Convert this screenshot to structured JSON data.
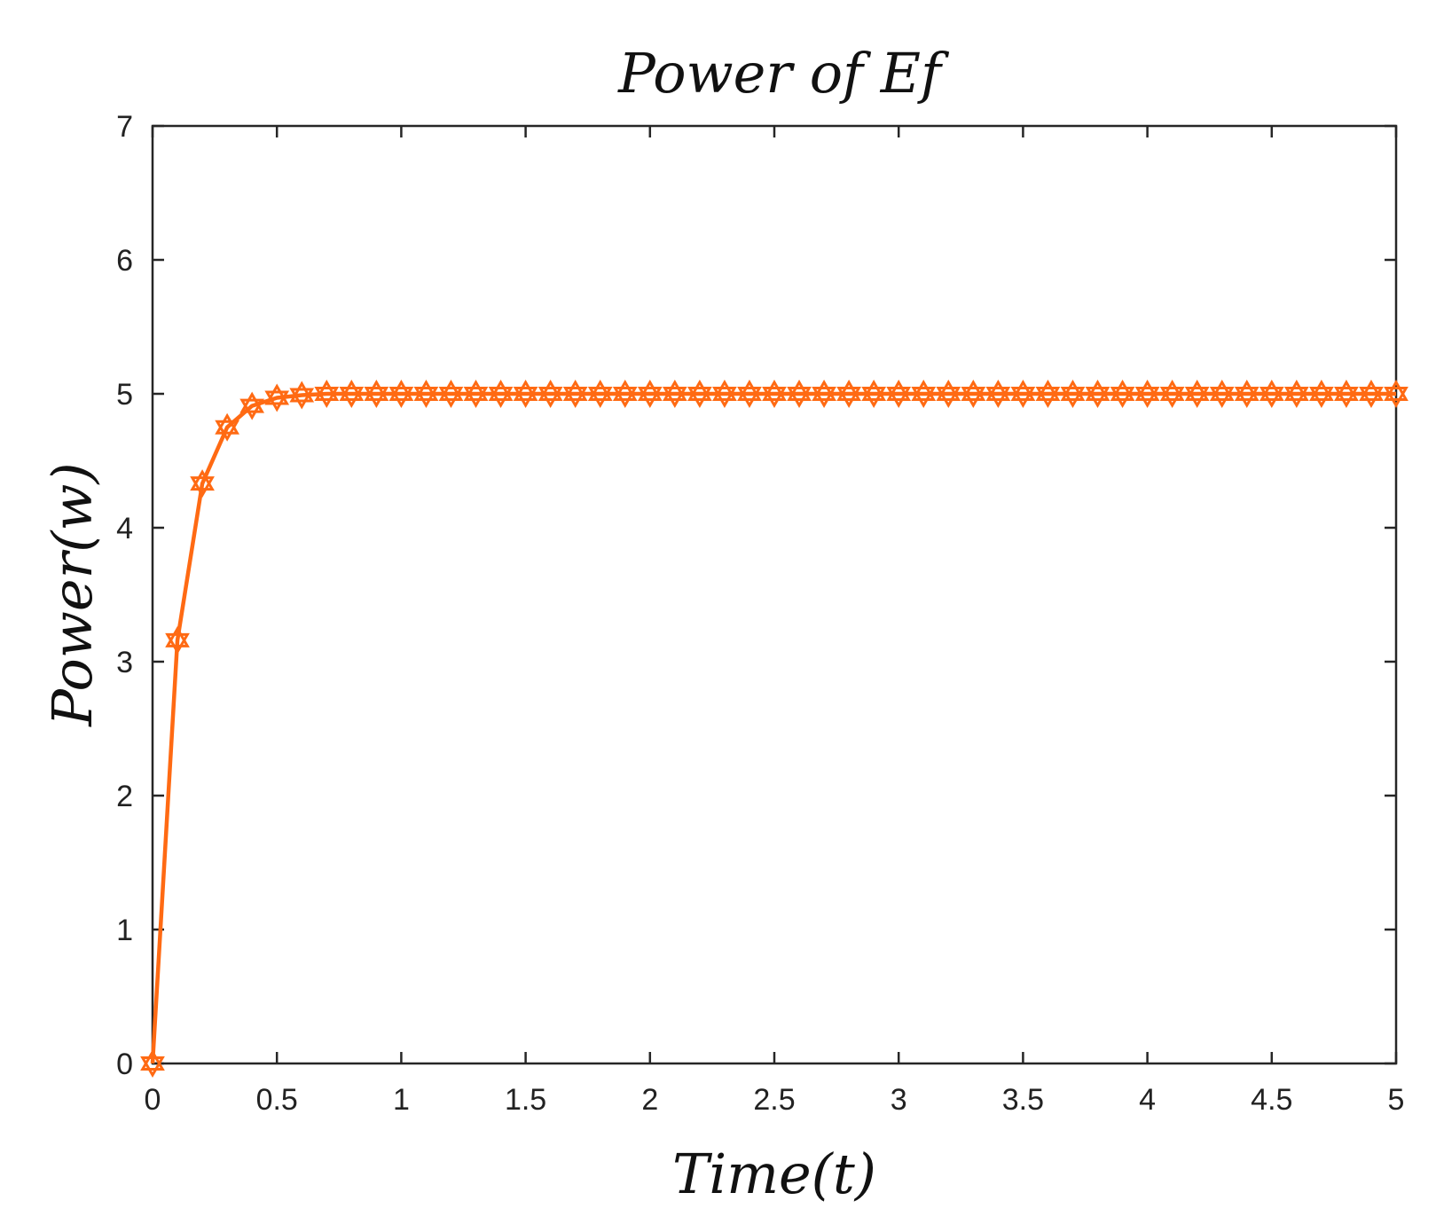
{
  "chart_data": {
    "type": "line",
    "title": "Power of Ef",
    "xlabel": "Time(t)",
    "ylabel": "Power(w)",
    "xlim": [
      0,
      5
    ],
    "ylim": [
      0,
      7
    ],
    "xticks": [
      "0",
      "0.5",
      "1",
      "1.5",
      "2",
      "2.5",
      "3",
      "3.5",
      "4",
      "4.5",
      "5"
    ],
    "yticks": [
      "0",
      "1",
      "2",
      "3",
      "4",
      "5",
      "6",
      "7"
    ],
    "grid": false,
    "series": [
      {
        "marker": "hexagram",
        "color": "#ff6a13",
        "x": [
          0,
          0.1,
          0.2,
          0.3,
          0.4,
          0.5,
          0.6,
          0.7,
          0.8,
          0.9,
          1.0,
          1.1,
          1.2,
          1.3,
          1.4,
          1.5,
          1.6,
          1.7,
          1.8,
          1.9,
          2.0,
          2.1,
          2.2,
          2.3,
          2.4,
          2.5,
          2.6,
          2.7,
          2.8,
          2.9,
          3.0,
          3.1,
          3.2,
          3.3,
          3.4,
          3.5,
          3.6,
          3.7,
          3.8,
          3.9,
          4.0,
          4.1,
          4.2,
          4.3,
          4.4,
          4.5,
          4.6,
          4.7,
          4.8,
          4.9,
          5.0
        ],
        "y": [
          0,
          3.16,
          4.33,
          4.75,
          4.91,
          4.97,
          4.99,
          5.0,
          5.0,
          5.0,
          5.0,
          5.0,
          5.0,
          5.0,
          5.0,
          5.0,
          5.0,
          5.0,
          5.0,
          5.0,
          5.0,
          5.0,
          5.0,
          5.0,
          5.0,
          5.0,
          5.0,
          5.0,
          5.0,
          5.0,
          5.0,
          5.0,
          5.0,
          5.0,
          5.0,
          5.0,
          5.0,
          5.0,
          5.0,
          5.0,
          5.0,
          5.0,
          5.0,
          5.0,
          5.0,
          5.0,
          5.0,
          5.0,
          5.0,
          5.0,
          5.0
        ]
      }
    ]
  }
}
